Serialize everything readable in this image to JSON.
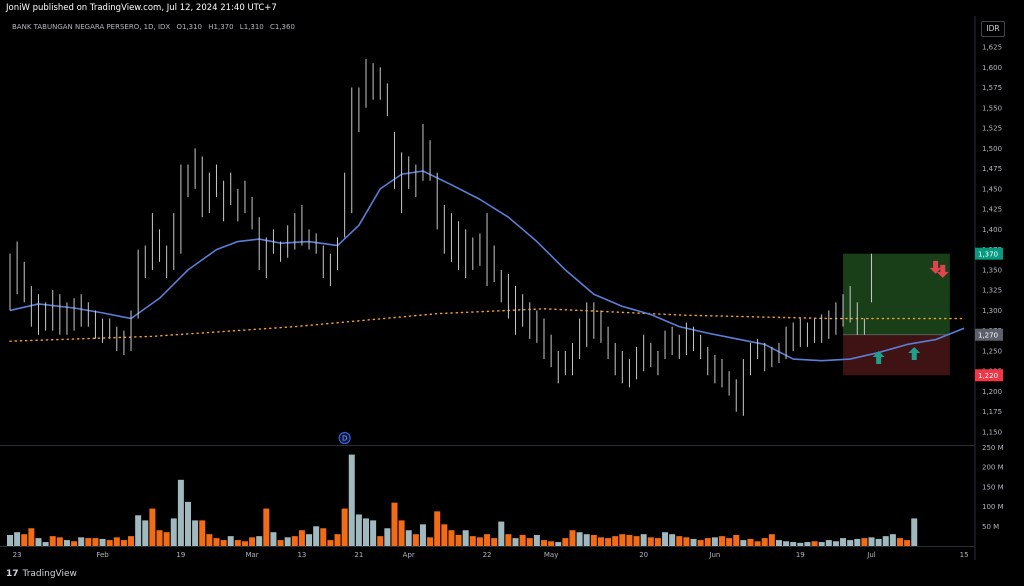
{
  "header": {
    "published": "JoniW published on TradingView.com, Jul 12, 2024 21:40 UTC+7"
  },
  "symbol_line": {
    "name": "BANK TABUNGAN NEGARA PERSERO, 1D, IDX",
    "o_label": "O",
    "o": "1,310",
    "h_label": "H",
    "h": "1,370",
    "l_label": "L",
    "l": "1,310",
    "c_label": "C",
    "c": "1,360"
  },
  "currency": "IDR",
  "brand": "TradingView",
  "colors": {
    "background": "#000000",
    "bar": "#c9c9c9",
    "ema": "#5b7fd6",
    "sma_dots": "#f0a030",
    "vol_up": "#9fb9bf",
    "vol_down": "#f26b16",
    "target_zone": "#1c4a1c",
    "stop_zone": "#4a1518",
    "target_label": "#089981",
    "stop_label": "#f23645",
    "arrow_up": "#1aa38a",
    "arrow_down": "#e0444f"
  },
  "chart_data": {
    "type": "ohlc",
    "price_axis": {
      "min": 1150,
      "max": 1625,
      "ticks": [
        "1,625",
        "1,600",
        "1,575",
        "1,550",
        "1,525",
        "1,500",
        "1,475",
        "1,450",
        "1,425",
        "1,400",
        "1,375",
        "1,350",
        "1,325",
        "1,300",
        "1,275",
        "1,250",
        "1,225",
        "1,200",
        "1,175",
        "1,150"
      ]
    },
    "x_axis": {
      "labels": [
        {
          "label": "23",
          "bar": 1
        },
        {
          "label": "Feb",
          "bar": 13
        },
        {
          "label": "19",
          "bar": 24
        },
        {
          "label": "Mar",
          "bar": 34
        },
        {
          "label": "13",
          "bar": 41
        },
        {
          "label": "21",
          "bar": 49
        },
        {
          "label": "Apr",
          "bar": 56
        },
        {
          "label": "22",
          "bar": 67
        },
        {
          "label": "May",
          "bar": 76
        },
        {
          "label": "20",
          "bar": 89
        },
        {
          "label": "Jun",
          "bar": 99
        },
        {
          "label": "19",
          "bar": 111
        },
        {
          "label": "Jul",
          "bar": 121
        },
        {
          "label": "15",
          "bar": 134
        }
      ]
    },
    "volume_axis": {
      "min": 0,
      "max": 250,
      "unit": "M",
      "ticks": [
        "250 M",
        "200 M",
        "150 M",
        "100 M",
        "50 M"
      ]
    },
    "bars": [
      {
        "h": 1370,
        "l": 1300
      },
      {
        "h": 1385,
        "l": 1320
      },
      {
        "h": 1360,
        "l": 1310
      },
      {
        "h": 1330,
        "l": 1280
      },
      {
        "h": 1320,
        "l": 1270
      },
      {
        "h": 1310,
        "l": 1275
      },
      {
        "h": 1325,
        "l": 1275
      },
      {
        "h": 1320,
        "l": 1270
      },
      {
        "h": 1310,
        "l": 1270
      },
      {
        "h": 1315,
        "l": 1275
      },
      {
        "h": 1320,
        "l": 1280
      },
      {
        "h": 1310,
        "l": 1280
      },
      {
        "h": 1300,
        "l": 1265
      },
      {
        "h": 1290,
        "l": 1260
      },
      {
        "h": 1290,
        "l": 1265
      },
      {
        "h": 1280,
        "l": 1250
      },
      {
        "h": 1275,
        "l": 1245
      },
      {
        "h": 1300,
        "l": 1250
      },
      {
        "h": 1375,
        "l": 1290
      },
      {
        "h": 1380,
        "l": 1340
      },
      {
        "h": 1420,
        "l": 1350
      },
      {
        "h": 1400,
        "l": 1360
      },
      {
        "h": 1380,
        "l": 1340
      },
      {
        "h": 1420,
        "l": 1350
      },
      {
        "h": 1480,
        "l": 1370
      },
      {
        "h": 1480,
        "l": 1440
      },
      {
        "h": 1500,
        "l": 1450
      },
      {
        "h": 1490,
        "l": 1415
      },
      {
        "h": 1470,
        "l": 1420
      },
      {
        "h": 1480,
        "l": 1440
      },
      {
        "h": 1460,
        "l": 1410
      },
      {
        "h": 1470,
        "l": 1430
      },
      {
        "h": 1450,
        "l": 1410
      },
      {
        "h": 1460,
        "l": 1420
      },
      {
        "h": 1440,
        "l": 1400
      },
      {
        "h": 1415,
        "l": 1350
      },
      {
        "h": 1390,
        "l": 1340
      },
      {
        "h": 1400,
        "l": 1370
      },
      {
        "h": 1385,
        "l": 1360
      },
      {
        "h": 1405,
        "l": 1365
      },
      {
        "h": 1420,
        "l": 1375
      },
      {
        "h": 1430,
        "l": 1380
      },
      {
        "h": 1400,
        "l": 1375
      },
      {
        "h": 1395,
        "l": 1370
      },
      {
        "h": 1380,
        "l": 1340
      },
      {
        "h": 1370,
        "l": 1330
      },
      {
        "h": 1390,
        "l": 1350
      },
      {
        "h": 1470,
        "l": 1390
      },
      {
        "h": 1575,
        "l": 1420
      },
      {
        "h": 1575,
        "l": 1520
      },
      {
        "h": 1610,
        "l": 1550
      },
      {
        "h": 1605,
        "l": 1560
      },
      {
        "h": 1600,
        "l": 1560
      },
      {
        "h": 1580,
        "l": 1540
      },
      {
        "h": 1520,
        "l": 1450
      },
      {
        "h": 1495,
        "l": 1420
      },
      {
        "h": 1490,
        "l": 1450
      },
      {
        "h": 1480,
        "l": 1440
      },
      {
        "h": 1530,
        "l": 1460
      },
      {
        "h": 1510,
        "l": 1460
      },
      {
        "h": 1470,
        "l": 1400
      },
      {
        "h": 1430,
        "l": 1370
      },
      {
        "h": 1420,
        "l": 1360
      },
      {
        "h": 1410,
        "l": 1350
      },
      {
        "h": 1400,
        "l": 1340
      },
      {
        "h": 1390,
        "l": 1350
      },
      {
        "h": 1395,
        "l": 1355
      },
      {
        "h": 1420,
        "l": 1330
      },
      {
        "h": 1380,
        "l": 1335
      },
      {
        "h": 1350,
        "l": 1310
      },
      {
        "h": 1345,
        "l": 1290
      },
      {
        "h": 1330,
        "l": 1270
      },
      {
        "h": 1320,
        "l": 1280
      },
      {
        "h": 1310,
        "l": 1265
      },
      {
        "h": 1300,
        "l": 1260
      },
      {
        "h": 1290,
        "l": 1240
      },
      {
        "h": 1270,
        "l": 1230
      },
      {
        "h": 1250,
        "l": 1210
      },
      {
        "h": 1250,
        "l": 1220
      },
      {
        "h": 1260,
        "l": 1220
      },
      {
        "h": 1290,
        "l": 1240
      },
      {
        "h": 1310,
        "l": 1255
      },
      {
        "h": 1310,
        "l": 1265
      },
      {
        "h": 1300,
        "l": 1260
      },
      {
        "h": 1280,
        "l": 1240
      },
      {
        "h": 1260,
        "l": 1220
      },
      {
        "h": 1250,
        "l": 1210
      },
      {
        "h": 1240,
        "l": 1205
      },
      {
        "h": 1255,
        "l": 1215
      },
      {
        "h": 1270,
        "l": 1225
      },
      {
        "h": 1260,
        "l": 1230
      },
      {
        "h": 1250,
        "l": 1220
      },
      {
        "h": 1275,
        "l": 1240
      },
      {
        "h": 1280,
        "l": 1245
      },
      {
        "h": 1270,
        "l": 1240
      },
      {
        "h": 1285,
        "l": 1245
      },
      {
        "h": 1280,
        "l": 1250
      },
      {
        "h": 1270,
        "l": 1240
      },
      {
        "h": 1255,
        "l": 1220
      },
      {
        "h": 1245,
        "l": 1210
      },
      {
        "h": 1240,
        "l": 1205
      },
      {
        "h": 1225,
        "l": 1195
      },
      {
        "h": 1215,
        "l": 1175
      },
      {
        "h": 1240,
        "l": 1170
      },
      {
        "h": 1260,
        "l": 1220
      },
      {
        "h": 1265,
        "l": 1240
      },
      {
        "h": 1260,
        "l": 1225
      },
      {
        "h": 1255,
        "l": 1230
      },
      {
        "h": 1260,
        "l": 1235
      },
      {
        "h": 1280,
        "l": 1240
      },
      {
        "h": 1285,
        "l": 1250
      },
      {
        "h": 1290,
        "l": 1255
      },
      {
        "h": 1285,
        "l": 1255
      },
      {
        "h": 1290,
        "l": 1260
      },
      {
        "h": 1295,
        "l": 1260
      },
      {
        "h": 1300,
        "l": 1265
      },
      {
        "h": 1310,
        "l": 1270
      },
      {
        "h": 1320,
        "l": 1280
      },
      {
        "h": 1330,
        "l": 1285
      },
      {
        "h": 1310,
        "l": 1270
      },
      {
        "h": 1290,
        "l": 1270
      },
      {
        "h": 1370,
        "l": 1310
      }
    ],
    "ema_line": [
      {
        "bar": 0,
        "v": 1300
      },
      {
        "bar": 4,
        "v": 1308
      },
      {
        "bar": 9,
        "v": 1303
      },
      {
        "bar": 13,
        "v": 1297
      },
      {
        "bar": 17,
        "v": 1290
      },
      {
        "bar": 21,
        "v": 1315
      },
      {
        "bar": 25,
        "v": 1350
      },
      {
        "bar": 29,
        "v": 1375
      },
      {
        "bar": 32,
        "v": 1385
      },
      {
        "bar": 35,
        "v": 1388
      },
      {
        "bar": 38,
        "v": 1383
      },
      {
        "bar": 42,
        "v": 1385
      },
      {
        "bar": 46,
        "v": 1380
      },
      {
        "bar": 49,
        "v": 1405
      },
      {
        "bar": 52,
        "v": 1450
      },
      {
        "bar": 55,
        "v": 1468
      },
      {
        "bar": 58,
        "v": 1472
      },
      {
        "bar": 62,
        "v": 1455
      },
      {
        "bar": 66,
        "v": 1437
      },
      {
        "bar": 70,
        "v": 1415
      },
      {
        "bar": 74,
        "v": 1385
      },
      {
        "bar": 78,
        "v": 1350
      },
      {
        "bar": 82,
        "v": 1320
      },
      {
        "bar": 86,
        "v": 1305
      },
      {
        "bar": 90,
        "v": 1295
      },
      {
        "bar": 94,
        "v": 1280
      },
      {
        "bar": 98,
        "v": 1272
      },
      {
        "bar": 102,
        "v": 1265
      },
      {
        "bar": 106,
        "v": 1258
      },
      {
        "bar": 110,
        "v": 1240
      },
      {
        "bar": 114,
        "v": 1238
      },
      {
        "bar": 118,
        "v": 1240
      },
      {
        "bar": 122,
        "v": 1248
      },
      {
        "bar": 126,
        "v": 1258
      },
      {
        "bar": 130,
        "v": 1264
      },
      {
        "bar": 134,
        "v": 1278
      }
    ],
    "sma_line": [
      {
        "bar": 0,
        "v": 1262
      },
      {
        "bar": 20,
        "v": 1268
      },
      {
        "bar": 40,
        "v": 1280
      },
      {
        "bar": 60,
        "v": 1296
      },
      {
        "bar": 75,
        "v": 1302
      },
      {
        "bar": 95,
        "v": 1294
      },
      {
        "bar": 115,
        "v": 1290
      },
      {
        "bar": 134,
        "v": 1290
      }
    ],
    "position": {
      "start_bar": 117,
      "end_bar": 132,
      "entry": 1270,
      "target": 1370,
      "stop": 1220
    },
    "price_labels": [
      {
        "value": 1370,
        "label": "1,370",
        "kind": "target"
      },
      {
        "value": 1270,
        "label": "1,270",
        "kind": "entry"
      },
      {
        "value": 1220,
        "label": "1,220",
        "kind": "stop"
      }
    ],
    "arrows": [
      {
        "dir": "up",
        "bar": 122,
        "v": 1240
      },
      {
        "dir": "up",
        "bar": 127,
        "v": 1245
      },
      {
        "dir": "down",
        "bar": 130,
        "v": 1355
      },
      {
        "dir": "down",
        "bar": 131,
        "v": 1350
      }
    ],
    "event_marker": {
      "bar": 47,
      "text": "D"
    },
    "volume": [
      {
        "v": 28,
        "u": true
      },
      {
        "v": 35,
        "u": true
      },
      {
        "v": 30,
        "u": false
      },
      {
        "v": 45,
        "u": false
      },
      {
        "v": 20,
        "u": true
      },
      {
        "v": 10,
        "u": true
      },
      {
        "v": 25,
        "u": false
      },
      {
        "v": 22,
        "u": false
      },
      {
        "v": 15,
        "u": true
      },
      {
        "v": 12,
        "u": false
      },
      {
        "v": 22,
        "u": true
      },
      {
        "v": 20,
        "u": false
      },
      {
        "v": 20,
        "u": false
      },
      {
        "v": 18,
        "u": true
      },
      {
        "v": 15,
        "u": false
      },
      {
        "v": 22,
        "u": false
      },
      {
        "v": 15,
        "u": false
      },
      {
        "v": 25,
        "u": false
      },
      {
        "v": 78,
        "u": true
      },
      {
        "v": 65,
        "u": true
      },
      {
        "v": 95,
        "u": false
      },
      {
        "v": 40,
        "u": false
      },
      {
        "v": 35,
        "u": false
      },
      {
        "v": 70,
        "u": true
      },
      {
        "v": 168,
        "u": true
      },
      {
        "v": 112,
        "u": true
      },
      {
        "v": 65,
        "u": true
      },
      {
        "v": 65,
        "u": false
      },
      {
        "v": 30,
        "u": false
      },
      {
        "v": 20,
        "u": false
      },
      {
        "v": 15,
        "u": false
      },
      {
        "v": 25,
        "u": true
      },
      {
        "v": 15,
        "u": false
      },
      {
        "v": 12,
        "u": false
      },
      {
        "v": 22,
        "u": false
      },
      {
        "v": 25,
        "u": true
      },
      {
        "v": 95,
        "u": false
      },
      {
        "v": 35,
        "u": true
      },
      {
        "v": 15,
        "u": false
      },
      {
        "v": 22,
        "u": true
      },
      {
        "v": 25,
        "u": false
      },
      {
        "v": 40,
        "u": false
      },
      {
        "v": 30,
        "u": true
      },
      {
        "v": 50,
        "u": true
      },
      {
        "v": 45,
        "u": false
      },
      {
        "v": 15,
        "u": false
      },
      {
        "v": 30,
        "u": false
      },
      {
        "v": 95,
        "u": false
      },
      {
        "v": 232,
        "u": true
      },
      {
        "v": 80,
        "u": true
      },
      {
        "v": 70,
        "u": true
      },
      {
        "v": 65,
        "u": true
      },
      {
        "v": 25,
        "u": false
      },
      {
        "v": 45,
        "u": true
      },
      {
        "v": 110,
        "u": false
      },
      {
        "v": 65,
        "u": false
      },
      {
        "v": 40,
        "u": true
      },
      {
        "v": 30,
        "u": false
      },
      {
        "v": 55,
        "u": true
      },
      {
        "v": 22,
        "u": false
      },
      {
        "v": 88,
        "u": false
      },
      {
        "v": 55,
        "u": false
      },
      {
        "v": 40,
        "u": false
      },
      {
        "v": 28,
        "u": false
      },
      {
        "v": 40,
        "u": true
      },
      {
        "v": 25,
        "u": false
      },
      {
        "v": 22,
        "u": false
      },
      {
        "v": 30,
        "u": false
      },
      {
        "v": 20,
        "u": false
      },
      {
        "v": 62,
        "u": true
      },
      {
        "v": 30,
        "u": false
      },
      {
        "v": 20,
        "u": true
      },
      {
        "v": 28,
        "u": false
      },
      {
        "v": 20,
        "u": false
      },
      {
        "v": 28,
        "u": true
      },
      {
        "v": 15,
        "u": false
      },
      {
        "v": 12,
        "u": false
      },
      {
        "v": 10,
        "u": true
      },
      {
        "v": 20,
        "u": false
      },
      {
        "v": 40,
        "u": false
      },
      {
        "v": 35,
        "u": true
      },
      {
        "v": 30,
        "u": true
      },
      {
        "v": 28,
        "u": false
      },
      {
        "v": 22,
        "u": false
      },
      {
        "v": 20,
        "u": false
      },
      {
        "v": 25,
        "u": false
      },
      {
        "v": 30,
        "u": false
      },
      {
        "v": 28,
        "u": false
      },
      {
        "v": 25,
        "u": false
      },
      {
        "v": 30,
        "u": true
      },
      {
        "v": 22,
        "u": false
      },
      {
        "v": 20,
        "u": false
      },
      {
        "v": 35,
        "u": true
      },
      {
        "v": 30,
        "u": true
      },
      {
        "v": 25,
        "u": false
      },
      {
        "v": 22,
        "u": false
      },
      {
        "v": 18,
        "u": true
      },
      {
        "v": 15,
        "u": false
      },
      {
        "v": 20,
        "u": false
      },
      {
        "v": 22,
        "u": true
      },
      {
        "v": 25,
        "u": false
      },
      {
        "v": 20,
        "u": false
      },
      {
        "v": 28,
        "u": false
      },
      {
        "v": 15,
        "u": true
      },
      {
        "v": 18,
        "u": false
      },
      {
        "v": 12,
        "u": false
      },
      {
        "v": 20,
        "u": false
      },
      {
        "v": 30,
        "u": false
      },
      {
        "v": 15,
        "u": true
      },
      {
        "v": 12,
        "u": true
      },
      {
        "v": 10,
        "u": true
      },
      {
        "v": 8,
        "u": true
      },
      {
        "v": 10,
        "u": true
      },
      {
        "v": 12,
        "u": false
      },
      {
        "v": 10,
        "u": true
      },
      {
        "v": 15,
        "u": true
      },
      {
        "v": 12,
        "u": true
      },
      {
        "v": 20,
        "u": true
      },
      {
        "v": 15,
        "u": true
      },
      {
        "v": 18,
        "u": true
      },
      {
        "v": 20,
        "u": false
      },
      {
        "v": 22,
        "u": true
      },
      {
        "v": 18,
        "u": true
      },
      {
        "v": 25,
        "u": true
      },
      {
        "v": 30,
        "u": true
      },
      {
        "v": 20,
        "u": false
      },
      {
        "v": 15,
        "u": false
      },
      {
        "v": 70,
        "u": true
      }
    ]
  }
}
